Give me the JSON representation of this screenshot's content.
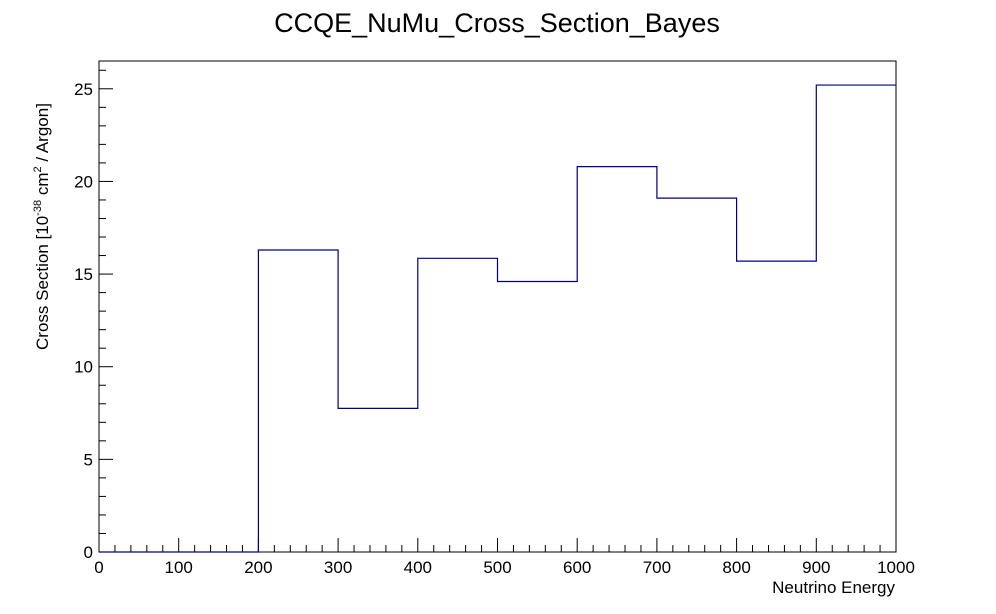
{
  "chart_data": {
    "type": "bar",
    "style": "step-histogram",
    "title": "CCQE_NuMu_Cross_Section_Bayes",
    "xlabel": "Neutrino Energy",
    "ylabel": {
      "prefix": "Cross Section [10",
      "exponent": "-38",
      "middle": " cm",
      "exponent2": "2",
      "suffix": " / Argon]"
    },
    "bin_edges": [
      0,
      100,
      200,
      300,
      400,
      500,
      600,
      700,
      800,
      900,
      1000
    ],
    "values": [
      0,
      0,
      16.3,
      7.75,
      15.85,
      14.6,
      20.8,
      19.1,
      15.7,
      25.2
    ],
    "xlim": [
      0,
      1000
    ],
    "ylim": [
      0,
      26.5
    ],
    "x_ticks": [
      "0",
      "100",
      "200",
      "300",
      "400",
      "500",
      "600",
      "700",
      "800",
      "900",
      "1000"
    ],
    "y_ticks": [
      "0",
      "5",
      "10",
      "15",
      "20",
      "25"
    ],
    "grid": false,
    "line_color": "#000080",
    "axis_color": "#000000"
  }
}
